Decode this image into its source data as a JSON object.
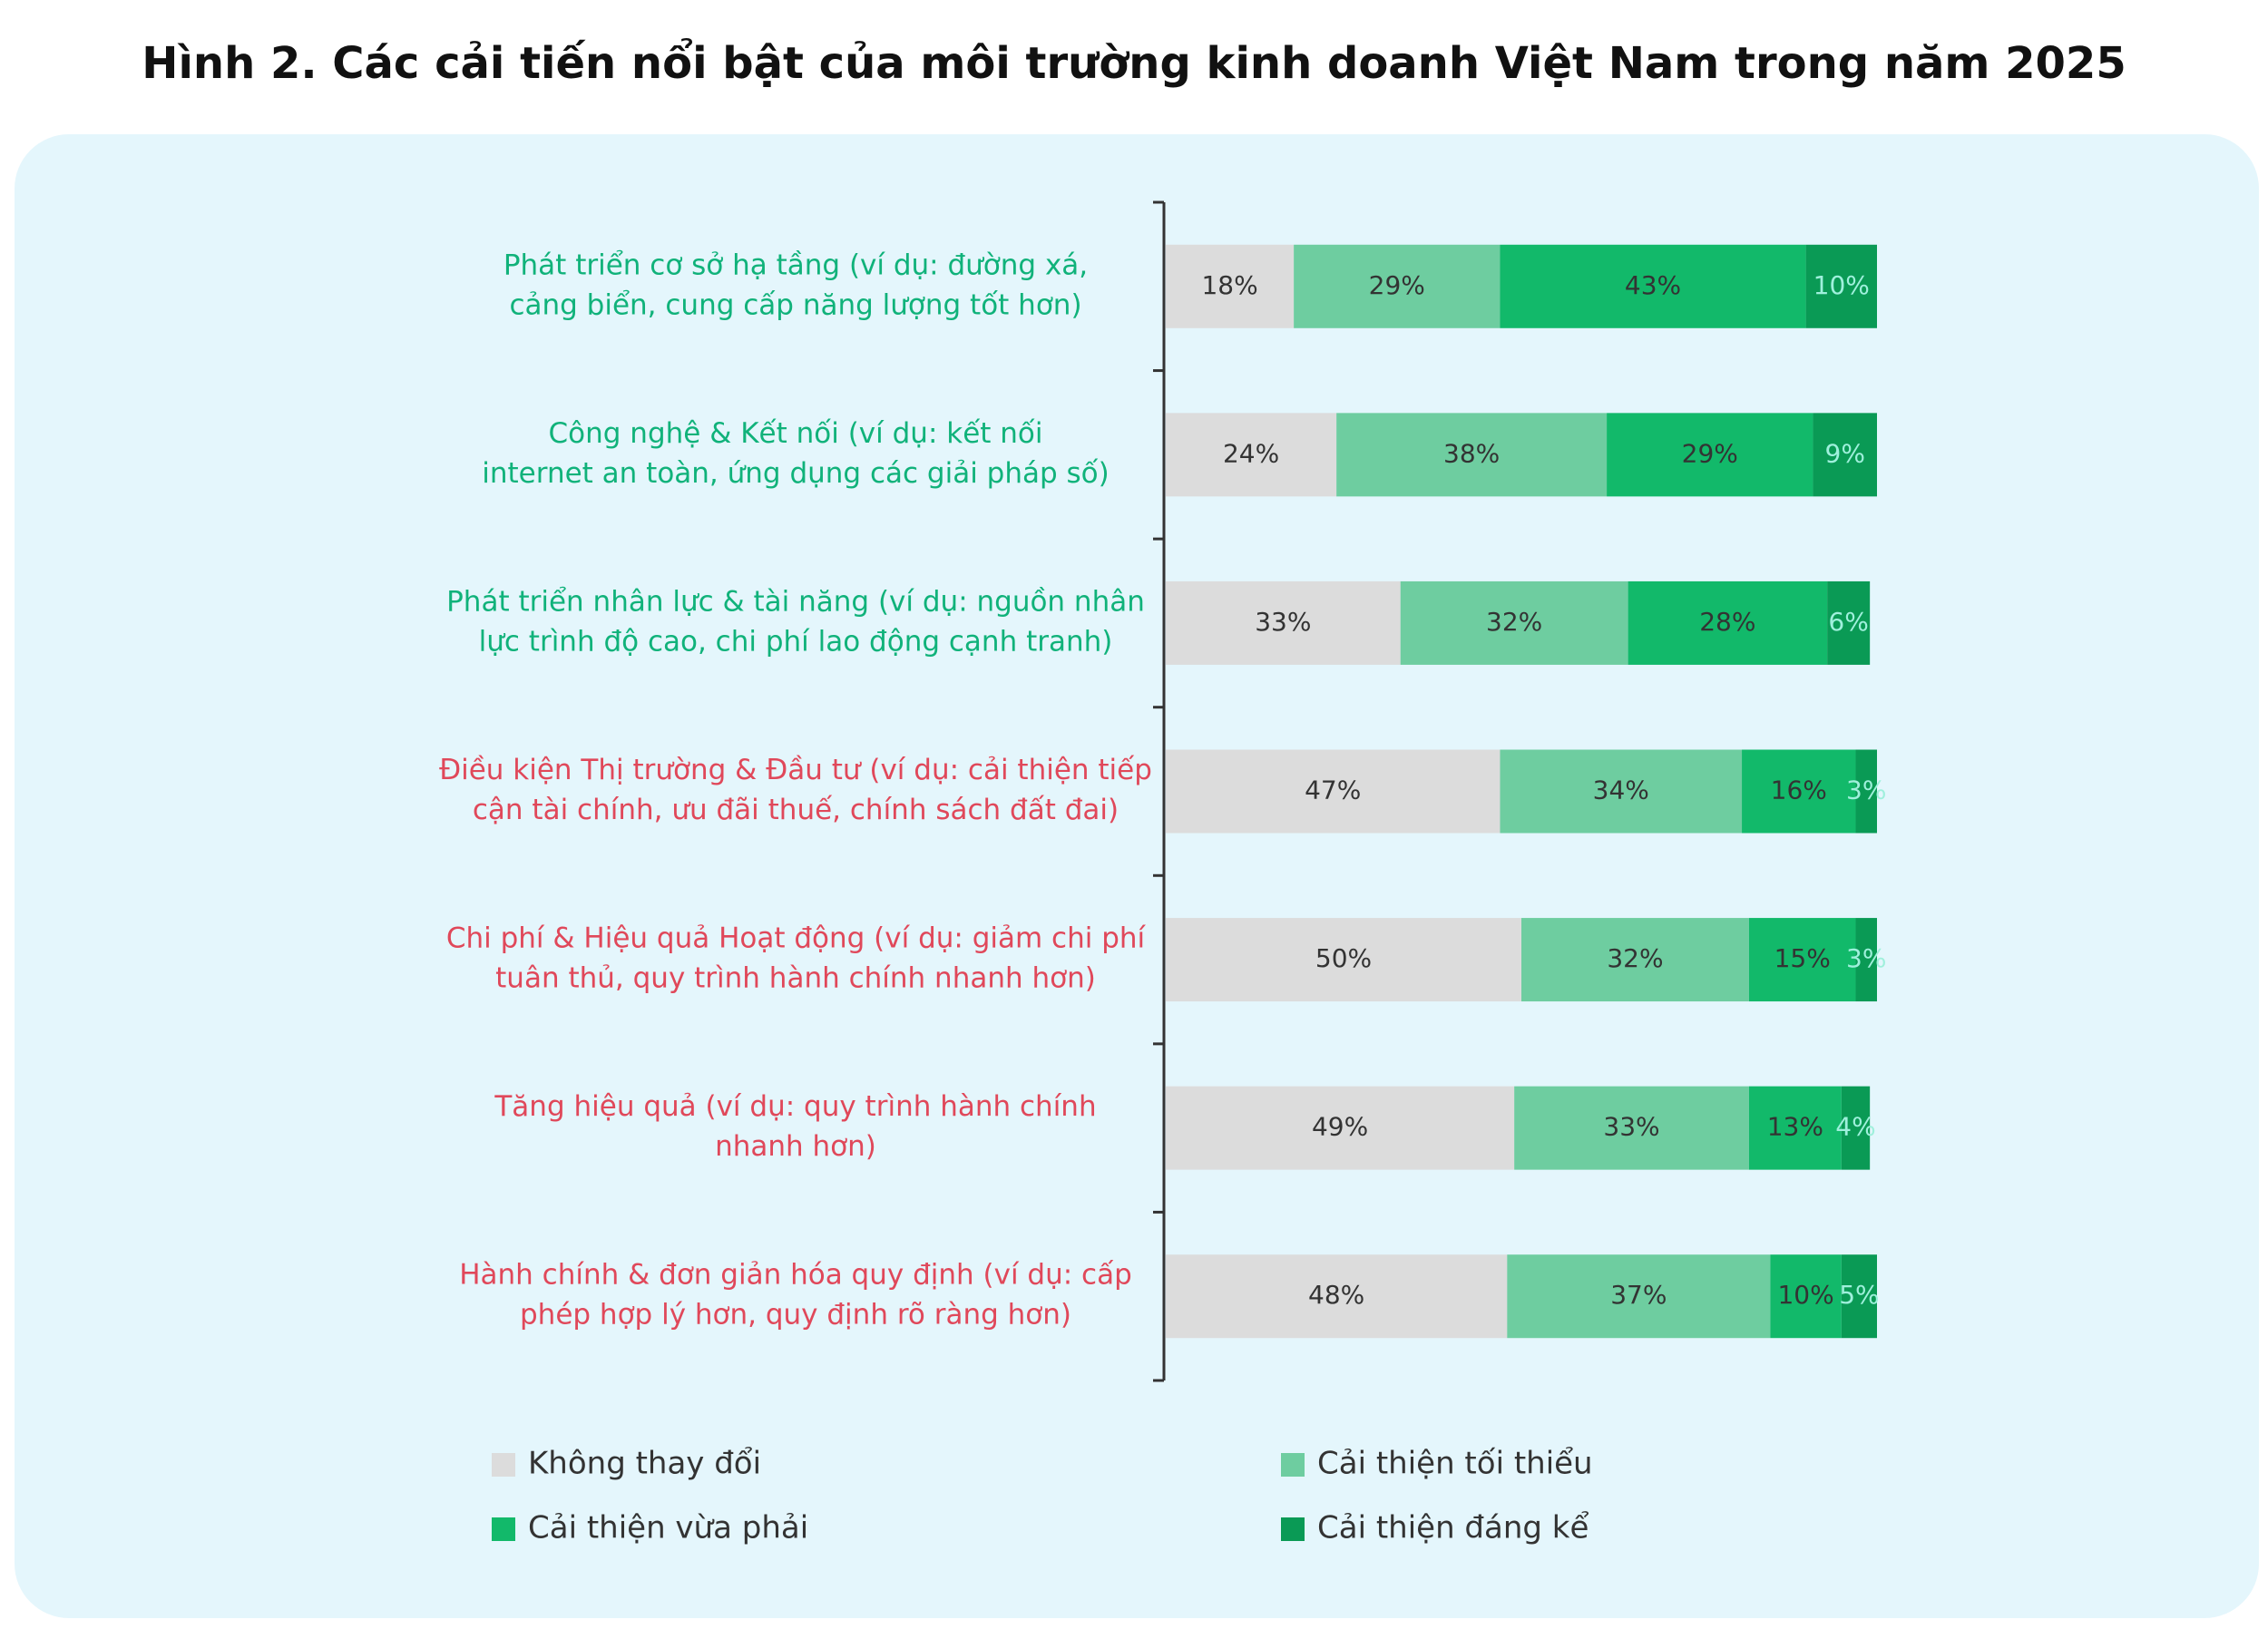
{
  "chart_data": {
    "type": "stacked-barh",
    "title": "Hình 2. Các cải tiến nổi bật của môi trường kinh doanh Việt Nam trong năm 2025",
    "categories": [
      [
        "Phát triển cơ sở hạ tầng (ví dụ: đường xá,",
        "cảng biển, cung cấp năng lượng tốt hơn)"
      ],
      [
        "Công nghệ & Kết nối (ví dụ: kết nối",
        "internet an toàn, ứng dụng các giải pháp số)"
      ],
      [
        "Phát triển nhân lực & tài năng (ví dụ: nguồn nhân",
        "lực trình độ cao, chi phí lao động cạnh tranh)"
      ],
      [
        "Điều kiện Thị trường & Đầu tư (ví dụ: cải thiện tiếp",
        "cận tài chính, ưu đãi thuế, chính sách đất đai)"
      ],
      [
        "Chi phí & Hiệu quả Hoạt động (ví dụ: giảm chi phí",
        "tuân thủ, quy trình hành chính nhanh hơn)"
      ],
      [
        "Tăng hiệu quả (ví dụ: quy trình hành chính",
        "nhanh hơn)"
      ],
      [
        "Hành chính & đơn giản hóa quy định (ví dụ: cấp",
        "phép hợp lý hơn, quy định rõ ràng hơn)"
      ]
    ],
    "category_colors": [
      "#10b27a",
      "#10b27a",
      "#10b27a",
      "#e0485a",
      "#e0485a",
      "#e0485a",
      "#e0485a"
    ],
    "xlim": [
      0,
      100
    ],
    "series": [
      {
        "name": "Không thay đổi",
        "color": "#dcdcdc",
        "label_color": "#333333",
        "values": [
          18,
          24,
          33,
          47,
          50,
          49,
          48
        ],
        "value_labels": [
          "18%",
          "24%",
          "33%",
          "47%",
          "50%",
          "49%",
          "48%"
        ]
      },
      {
        "name": "Cải thiện tối thiểu",
        "color": "#6ecda0",
        "label_color": "#333333",
        "values": [
          29,
          38,
          32,
          34,
          32,
          33,
          37
        ],
        "value_labels": [
          "29%",
          "38%",
          "32%",
          "34%",
          "32%",
          "33%",
          "37%"
        ]
      },
      {
        "name": "Cải thiện vừa phải",
        "color": "#12b96a",
        "label_color": "#333333",
        "values": [
          43,
          29,
          28,
          16,
          15,
          13,
          10
        ],
        "value_labels": [
          "43%",
          "29%",
          "28%",
          "16%",
          "15%",
          "13%",
          "10%"
        ]
      },
      {
        "name": "Cải thiện đáng kể",
        "color": "#0a9a55",
        "label_color": "#9ff0dc",
        "values": [
          10,
          9,
          6,
          3,
          3,
          4,
          5
        ],
        "value_labels": [
          "10%",
          "9%",
          "6%",
          "3%",
          "3%",
          "4%",
          "5%"
        ]
      }
    ]
  }
}
